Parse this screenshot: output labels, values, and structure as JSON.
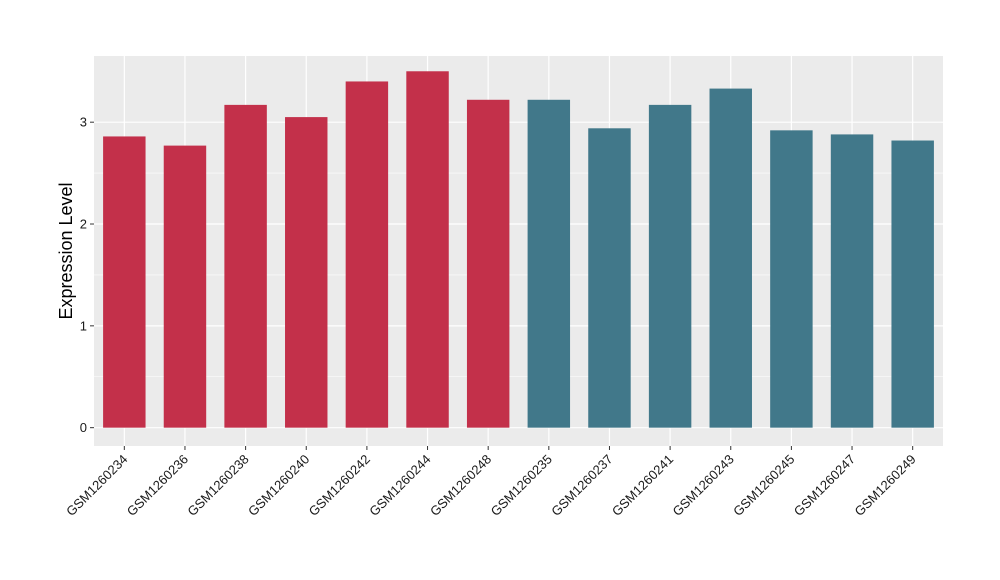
{
  "chart_data": {
    "type": "bar",
    "title": "",
    "xlabel": "",
    "ylabel": "Expression Level",
    "ylim": [
      -0.18,
      3.65
    ],
    "yticks": [
      0,
      1,
      2,
      3
    ],
    "grid": true,
    "panel_background": "#ebebeb",
    "group_colors": [
      "#c3304a",
      "#41788a"
    ],
    "categories": [
      "GSM1260234",
      "GSM1260236",
      "GSM1260238",
      "GSM1260240",
      "GSM1260242",
      "GSM1260244",
      "GSM1260248",
      "GSM1260235",
      "GSM1260237",
      "GSM1260241",
      "GSM1260243",
      "GSM1260245",
      "GSM1260247",
      "GSM1260249"
    ],
    "values": [
      2.86,
      2.77,
      3.17,
      3.05,
      3.4,
      3.5,
      3.22,
      3.22,
      2.94,
      3.17,
      3.33,
      2.92,
      2.88,
      2.82
    ],
    "groups": [
      0,
      0,
      0,
      0,
      0,
      0,
      0,
      1,
      1,
      1,
      1,
      1,
      1,
      1
    ]
  }
}
